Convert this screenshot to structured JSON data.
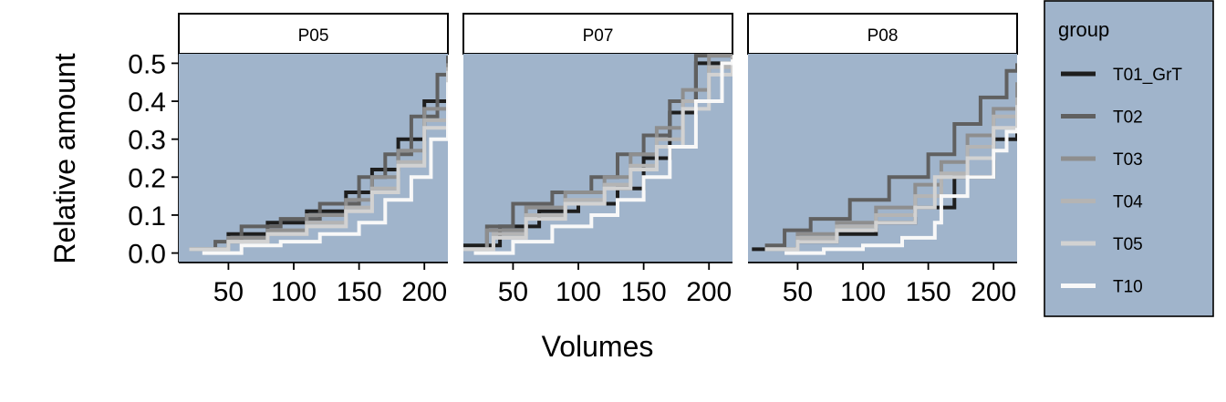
{
  "chart_data": {
    "type": "line",
    "step": true,
    "facets": [
      "P05",
      "P07",
      "P08"
    ],
    "xlabel": "Volumes",
    "ylabel": "Relative amount",
    "xlim": [
      12,
      218
    ],
    "ylim": [
      -0.025,
      0.525
    ],
    "xticks": [
      50,
      100,
      150,
      200
    ],
    "yticks": [
      0.0,
      0.1,
      0.2,
      0.3,
      0.4,
      0.5
    ],
    "ytick_labels": [
      "0.0",
      "0.1",
      "0.2",
      "0.3",
      "0.4",
      "0.5"
    ],
    "panel_background": "#a0b4cb",
    "legend": {
      "title": "group",
      "position": "right",
      "background": "#a0b4cb"
    },
    "series": [
      {
        "name": "T01_GrT",
        "color": "#1e1e1e",
        "points": [
          [
            [
              20,
              0.01
            ],
            [
              50,
              0.05
            ],
            [
              80,
              0.08
            ],
            [
              110,
              0.11
            ],
            [
              140,
              0.16
            ],
            [
              160,
              0.22
            ],
            [
              180,
              0.3
            ],
            [
              200,
              0.4
            ],
            [
              218,
              0.5
            ]
          ],
          [
            [
              12,
              0.02
            ],
            [
              40,
              0.07
            ],
            [
              70,
              0.11
            ],
            [
              100,
              0.13
            ],
            [
              130,
              0.17
            ],
            [
              150,
              0.25
            ],
            [
              170,
              0.37
            ],
            [
              190,
              0.5
            ],
            [
              218,
              0.52
            ]
          ],
          [
            [
              15,
              0.01
            ],
            [
              50,
              0.03
            ],
            [
              80,
              0.05
            ],
            [
              110,
              0.08
            ],
            [
              140,
              0.12
            ],
            [
              170,
              0.2
            ],
            [
              200,
              0.3
            ],
            [
              218,
              0.36
            ]
          ]
        ]
      },
      {
        "name": "T02",
        "color": "#606060",
        "points": [
          [
            [
              20,
              0.01
            ],
            [
              40,
              0.03
            ],
            [
              60,
              0.07
            ],
            [
              90,
              0.09
            ],
            [
              120,
              0.13
            ],
            [
              150,
              0.2
            ],
            [
              170,
              0.26
            ],
            [
              190,
              0.36
            ],
            [
              210,
              0.47
            ],
            [
              218,
              0.52
            ]
          ],
          [
            [
              12,
              0.01
            ],
            [
              30,
              0.07
            ],
            [
              50,
              0.13
            ],
            [
              80,
              0.16
            ],
            [
              110,
              0.2
            ],
            [
              130,
              0.26
            ],
            [
              150,
              0.31
            ],
            [
              170,
              0.4
            ],
            [
              190,
              0.52
            ],
            [
              218,
              0.53
            ]
          ],
          [
            [
              25,
              0.02
            ],
            [
              40,
              0.06
            ],
            [
              60,
              0.09
            ],
            [
              90,
              0.14
            ],
            [
              120,
              0.2
            ],
            [
              150,
              0.26
            ],
            [
              170,
              0.34
            ],
            [
              190,
              0.41
            ],
            [
              210,
              0.48
            ],
            [
              218,
              0.5
            ]
          ]
        ]
      },
      {
        "name": "T03",
        "color": "#8e8e8e",
        "points": [
          [
            [
              20,
              0.01
            ],
            [
              50,
              0.04
            ],
            [
              80,
              0.06
            ],
            [
              110,
              0.1
            ],
            [
              140,
              0.14
            ],
            [
              160,
              0.2
            ],
            [
              180,
              0.27
            ],
            [
              200,
              0.38
            ],
            [
              218,
              0.5
            ]
          ],
          [
            [
              12,
              0.01
            ],
            [
              30,
              0.06
            ],
            [
              60,
              0.12
            ],
            [
              90,
              0.16
            ],
            [
              120,
              0.2
            ],
            [
              140,
              0.26
            ],
            [
              160,
              0.33
            ],
            [
              180,
              0.43
            ],
            [
              200,
              0.52
            ],
            [
              218,
              0.53
            ]
          ],
          [
            [
              25,
              0.01
            ],
            [
              50,
              0.05
            ],
            [
              80,
              0.08
            ],
            [
              110,
              0.12
            ],
            [
              140,
              0.18
            ],
            [
              160,
              0.24
            ],
            [
              180,
              0.31
            ],
            [
              200,
              0.38
            ],
            [
              218,
              0.45
            ]
          ]
        ]
      },
      {
        "name": "T04",
        "color": "#b4b4b4",
        "points": [
          [
            [
              20,
              0.01
            ],
            [
              50,
              0.03
            ],
            [
              80,
              0.05
            ],
            [
              110,
              0.08
            ],
            [
              140,
              0.12
            ],
            [
              160,
              0.17
            ],
            [
              180,
              0.24
            ],
            [
              200,
              0.35
            ],
            [
              218,
              0.49
            ]
          ],
          [
            [
              12,
              0.01
            ],
            [
              35,
              0.05
            ],
            [
              60,
              0.1
            ],
            [
              90,
              0.14
            ],
            [
              120,
              0.18
            ],
            [
              140,
              0.23
            ],
            [
              160,
              0.3
            ],
            [
              180,
              0.4
            ],
            [
              200,
              0.49
            ],
            [
              218,
              0.52
            ]
          ],
          [
            [
              25,
              0.01
            ],
            [
              50,
              0.04
            ],
            [
              80,
              0.07
            ],
            [
              110,
              0.1
            ],
            [
              140,
              0.15
            ],
            [
              160,
              0.21
            ],
            [
              180,
              0.28
            ],
            [
              200,
              0.36
            ],
            [
              218,
              0.41
            ]
          ]
        ]
      },
      {
        "name": "T05",
        "color": "#d2d2d2",
        "points": [
          [
            [
              20,
              0.01
            ],
            [
              50,
              0.03
            ],
            [
              80,
              0.05
            ],
            [
              110,
              0.07
            ],
            [
              140,
              0.11
            ],
            [
              160,
              0.16
            ],
            [
              180,
              0.23
            ],
            [
              200,
              0.33
            ],
            [
              218,
              0.48
            ]
          ],
          [
            [
              12,
              0.01
            ],
            [
              35,
              0.04
            ],
            [
              60,
              0.09
            ],
            [
              90,
              0.13
            ],
            [
              120,
              0.17
            ],
            [
              140,
              0.22
            ],
            [
              160,
              0.28
            ],
            [
              180,
              0.38
            ],
            [
              200,
              0.47
            ],
            [
              218,
              0.51
            ]
          ],
          [
            [
              25,
              0.01
            ],
            [
              50,
              0.03
            ],
            [
              80,
              0.06
            ],
            [
              110,
              0.08
            ],
            [
              140,
              0.12
            ],
            [
              155,
              0.2
            ],
            [
              180,
              0.25
            ],
            [
              200,
              0.33
            ],
            [
              218,
              0.39
            ]
          ]
        ]
      },
      {
        "name": "T10",
        "color": "#f8f8f8",
        "points": [
          [
            [
              30,
              0.0
            ],
            [
              60,
              0.02
            ],
            [
              90,
              0.03
            ],
            [
              120,
              0.05
            ],
            [
              150,
              0.08
            ],
            [
              170,
              0.14
            ],
            [
              190,
              0.2
            ],
            [
              205,
              0.3
            ],
            [
              218,
              0.45
            ]
          ],
          [
            [
              20,
              0.0
            ],
            [
              50,
              0.03
            ],
            [
              80,
              0.07
            ],
            [
              110,
              0.1
            ],
            [
              130,
              0.14
            ],
            [
              150,
              0.2
            ],
            [
              170,
              0.28
            ],
            [
              190,
              0.4
            ],
            [
              210,
              0.5
            ],
            [
              218,
              0.51
            ]
          ],
          [
            [
              40,
              0.0
            ],
            [
              70,
              0.01
            ],
            [
              100,
              0.02
            ],
            [
              130,
              0.04
            ],
            [
              155,
              0.08
            ],
            [
              160,
              0.15
            ],
            [
              180,
              0.2
            ],
            [
              200,
              0.27
            ],
            [
              210,
              0.32
            ],
            [
              218,
              0.33
            ]
          ]
        ]
      }
    ]
  }
}
